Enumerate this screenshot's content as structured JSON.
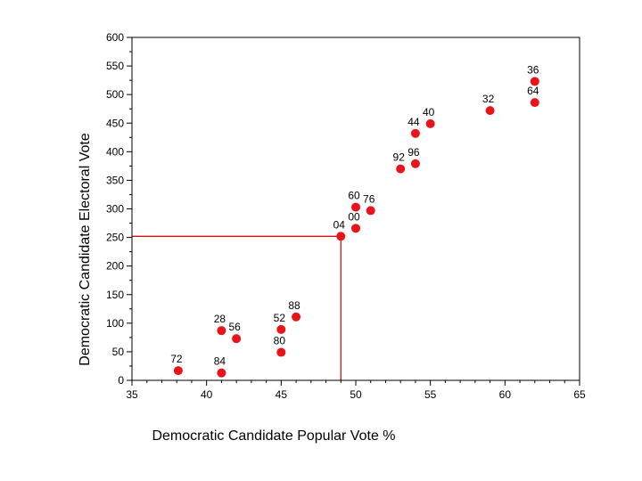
{
  "chart_data": {
    "type": "scatter",
    "title": "",
    "xlabel": "Democratic Candidate Popular Vote %",
    "ylabel": "Democratic Candidate Electoral Vote",
    "xlim": [
      35,
      65
    ],
    "ylim": [
      0,
      600
    ],
    "x_ticks": [
      "35",
      "40",
      "45",
      "50",
      "55",
      "60",
      "65"
    ],
    "y_ticks": [
      "0",
      "50",
      "100",
      "150",
      "200",
      "250",
      "300",
      "350",
      "400",
      "450",
      "500",
      "550",
      "600"
    ],
    "grid": false,
    "point_color": "#e8141a",
    "line_color": "#d01010",
    "points": [
      {
        "label": "72",
        "x": 38.1,
        "y": 17
      },
      {
        "label": "84",
        "x": 41.0,
        "y": 13
      },
      {
        "label": "28",
        "x": 41.0,
        "y": 87
      },
      {
        "label": "56",
        "x": 42.0,
        "y": 73
      },
      {
        "label": "52",
        "x": 45.0,
        "y": 89
      },
      {
        "label": "80",
        "x": 45.0,
        "y": 49
      },
      {
        "label": "88",
        "x": 46.0,
        "y": 111
      },
      {
        "label": "04",
        "x": 49.0,
        "y": 252
      },
      {
        "label": "00",
        "x": 50.0,
        "y": 266
      },
      {
        "label": "60",
        "x": 50.0,
        "y": 303
      },
      {
        "label": "76",
        "x": 51.0,
        "y": 297
      },
      {
        "label": "92",
        "x": 53.0,
        "y": 370
      },
      {
        "label": "96",
        "x": 54.0,
        "y": 379
      },
      {
        "label": "44",
        "x": 54.0,
        "y": 432
      },
      {
        "label": "40",
        "x": 55.0,
        "y": 449
      },
      {
        "label": "32",
        "x": 59.0,
        "y": 472
      },
      {
        "label": "64",
        "x": 62.0,
        "y": 486
      },
      {
        "label": "36",
        "x": 62.0,
        "y": 523
      }
    ],
    "reference_point": {
      "x": 49,
      "y": 252
    }
  }
}
